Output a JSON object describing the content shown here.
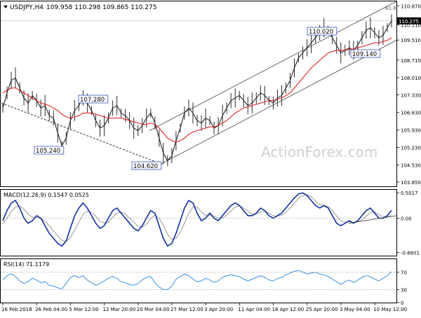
{
  "chart_data": [
    {
      "type": "candlestick",
      "title": "USDJPY,H4",
      "ohlc_header": [
        "109.958",
        "110.298",
        "109.865",
        "110.275"
      ],
      "last_price": "110.275",
      "y_ticks": [
        "110.870",
        "110.110",
        "109.510",
        "108.710",
        "108.010",
        "107.330",
        "106.630",
        "105.930",
        "105.230",
        "104.530",
        "103.850"
      ],
      "ylim": [
        103.68,
        111.05
      ],
      "channel_label": "61.8",
      "annotations": [
        "107.280",
        "105.240",
        "104.620",
        "110.020",
        "109.140"
      ],
      "watermark": "ActionForex.com",
      "series_close": [
        106.8,
        107.4,
        107.9,
        108.0,
        107.6,
        107.2,
        107.0,
        107.3,
        107.1,
        106.8,
        106.9,
        106.5,
        106.4,
        105.8,
        105.3,
        105.6,
        106.3,
        106.7,
        106.9,
        107.2,
        107.0,
        106.7,
        106.3,
        106.0,
        106.1,
        106.4,
        106.8,
        106.9,
        106.6,
        106.5,
        106.3,
        106.0,
        105.9,
        106.1,
        106.4,
        106.6,
        106.2,
        105.6,
        105.0,
        104.7,
        104.9,
        105.5,
        106.0,
        106.6,
        106.8,
        106.6,
        106.3,
        106.2,
        106.4,
        106.3,
        106.0,
        106.1,
        106.5,
        106.8,
        107.1,
        107.2,
        107.3,
        107.1,
        106.9,
        107.0,
        107.2,
        107.4,
        107.3,
        107.1,
        107.0,
        107.2,
        107.3,
        107.6,
        107.9,
        108.4,
        108.8,
        109.0,
        109.2,
        109.4,
        109.6,
        109.8,
        110.0,
        109.9,
        109.6,
        109.3,
        109.0,
        109.1,
        109.2,
        109.1,
        109.3,
        109.6,
        109.9,
        110.0,
        109.8,
        109.6,
        109.7,
        110.0,
        110.275
      ],
      "series_ma": [
        107.4,
        107.5,
        107.6,
        107.6,
        107.5,
        107.4,
        107.3,
        107.2,
        107.1,
        107.0,
        106.95,
        106.9,
        106.8,
        106.7,
        106.55,
        106.45,
        106.4,
        106.45,
        106.5,
        106.6,
        106.6,
        106.6,
        106.55,
        106.5,
        106.45,
        106.4,
        106.4,
        106.4,
        106.4,
        106.35,
        106.3,
        106.25,
        106.2,
        106.15,
        106.15,
        106.2,
        106.15,
        106.0,
        105.8,
        105.6,
        105.5,
        105.45,
        105.5,
        105.6,
        105.75,
        105.85,
        105.9,
        105.95,
        106.0,
        106.05,
        106.05,
        106.1,
        106.2,
        106.3,
        106.45,
        106.6,
        106.7,
        106.8,
        106.85,
        106.9,
        106.95,
        107.0,
        107.05,
        107.1,
        107.1,
        107.15,
        107.2,
        107.3,
        107.4,
        107.6,
        107.8,
        108.0,
        108.2,
        108.4,
        108.55,
        108.7,
        108.85,
        109.0,
        109.05,
        109.1,
        109.1,
        109.1,
        109.15,
        109.15,
        109.2,
        109.25,
        109.3,
        109.35,
        109.4,
        109.4,
        109.45,
        109.5,
        109.6
      ]
    },
    {
      "type": "line",
      "title": "MACD(12,26,9) 0.1547 0.0525",
      "y_ticks": [
        "0.5017",
        "0.00",
        "-0.6801"
      ],
      "ylim": [
        -0.74,
        0.56
      ],
      "macd": [
        -0.05,
        0.15,
        0.3,
        0.35,
        0.2,
        0.0,
        -0.1,
        -0.05,
        0.05,
        0.0,
        -0.15,
        -0.3,
        -0.4,
        -0.5,
        -0.55,
        -0.45,
        -0.2,
        0.05,
        0.2,
        0.3,
        0.2,
        0.05,
        -0.1,
        -0.2,
        -0.15,
        0.0,
        0.15,
        0.2,
        0.1,
        0.0,
        -0.1,
        -0.2,
        -0.25,
        -0.15,
        0.0,
        0.15,
        0.1,
        -0.15,
        -0.4,
        -0.55,
        -0.5,
        -0.3,
        -0.05,
        0.2,
        0.35,
        0.3,
        0.1,
        -0.05,
        0.0,
        0.1,
        0.0,
        -0.05,
        0.05,
        0.15,
        0.25,
        0.3,
        0.25,
        0.15,
        0.05,
        0.05,
        0.1,
        0.2,
        0.15,
        0.05,
        0.0,
        0.05,
        0.1,
        0.2,
        0.3,
        0.4,
        0.48,
        0.5,
        0.45,
        0.35,
        0.25,
        0.2,
        0.25,
        0.2,
        0.05,
        -0.1,
        -0.15,
        -0.1,
        -0.05,
        -0.1,
        -0.05,
        0.05,
        0.15,
        0.2,
        0.1,
        0.0,
        0.0,
        0.05,
        0.1547
      ],
      "signal": [
        -0.1,
        0.0,
        0.12,
        0.22,
        0.24,
        0.18,
        0.08,
        0.02,
        0.01,
        0.0,
        -0.06,
        -0.15,
        -0.25,
        -0.35,
        -0.44,
        -0.46,
        -0.38,
        -0.24,
        -0.08,
        0.08,
        0.14,
        0.12,
        0.04,
        -0.06,
        -0.1,
        -0.08,
        0.02,
        0.1,
        0.12,
        0.08,
        0.0,
        -0.08,
        -0.16,
        -0.18,
        -0.12,
        0.0,
        0.06,
        0.0,
        -0.14,
        -0.32,
        -0.42,
        -0.4,
        -0.28,
        -0.1,
        0.1,
        0.22,
        0.22,
        0.12,
        0.06,
        0.06,
        0.04,
        0.0,
        0.01,
        0.06,
        0.14,
        0.22,
        0.24,
        0.2,
        0.14,
        0.08,
        0.08,
        0.12,
        0.14,
        0.1,
        0.05,
        0.04,
        0.06,
        0.12,
        0.2,
        0.3,
        0.39,
        0.45,
        0.46,
        0.42,
        0.34,
        0.27,
        0.25,
        0.23,
        0.15,
        0.04,
        -0.05,
        -0.08,
        -0.07,
        -0.08,
        -0.07,
        -0.03,
        0.04,
        0.11,
        0.12,
        0.07,
        0.03,
        0.03,
        0.0525
      ]
    },
    {
      "type": "line",
      "title": "RSI(14) 71.1179",
      "y_ticks": [
        "70",
        "30",
        "0"
      ],
      "ylim": [
        0,
        100
      ],
      "rsi": [
        52,
        62,
        66,
        60,
        50,
        44,
        48,
        56,
        52,
        46,
        48,
        40,
        38,
        34,
        32,
        44,
        58,
        62,
        58,
        62,
        52,
        46,
        40,
        44,
        50,
        56,
        60,
        56,
        48,
        46,
        42,
        40,
        44,
        52,
        58,
        60,
        46,
        36,
        30,
        30,
        38,
        54,
        60,
        66,
        62,
        54,
        48,
        50,
        56,
        52,
        46,
        50,
        58,
        62,
        64,
        62,
        60,
        54,
        50,
        54,
        58,
        62,
        58,
        52,
        50,
        56,
        58,
        64,
        68,
        72,
        74,
        70,
        66,
        68,
        70,
        66,
        64,
        60,
        54,
        48,
        42,
        48,
        52,
        46,
        52,
        58,
        62,
        60,
        54,
        50,
        56,
        62,
        71.1179
      ]
    }
  ],
  "x_ticks": [
    "16 Feb 2018",
    "26 Feb 04:00",
    "5 Mar 12:00",
    "12 Mar 20:00",
    "20 Mar 04:00",
    "27 Mar 12:00",
    "3 Apr 20:00",
    "11 Apr 04:00",
    "18 Apr 12:00",
    "25 Apr 20:00",
    "3 May 04:00",
    "10 May 12:00"
  ],
  "colors": {
    "price": "#2a2a2a",
    "ma": "#e01010",
    "macd": "#1030a0",
    "signal": "#9a9a9a",
    "rsi": "#3a8fe0",
    "annotation_border": "#3050c0",
    "current_price_label": "#000000",
    "grid": "#999999",
    "watermark": "#cfcfcf"
  },
  "ui": {
    "header_label": "USDJPY,H4",
    "header_values": "109.958 110.298 109.865 110.275",
    "macd_label": "MACD(12,26,9) 0.1547 0.0525",
    "rsi_label": "RSI(14) 71.1179"
  }
}
